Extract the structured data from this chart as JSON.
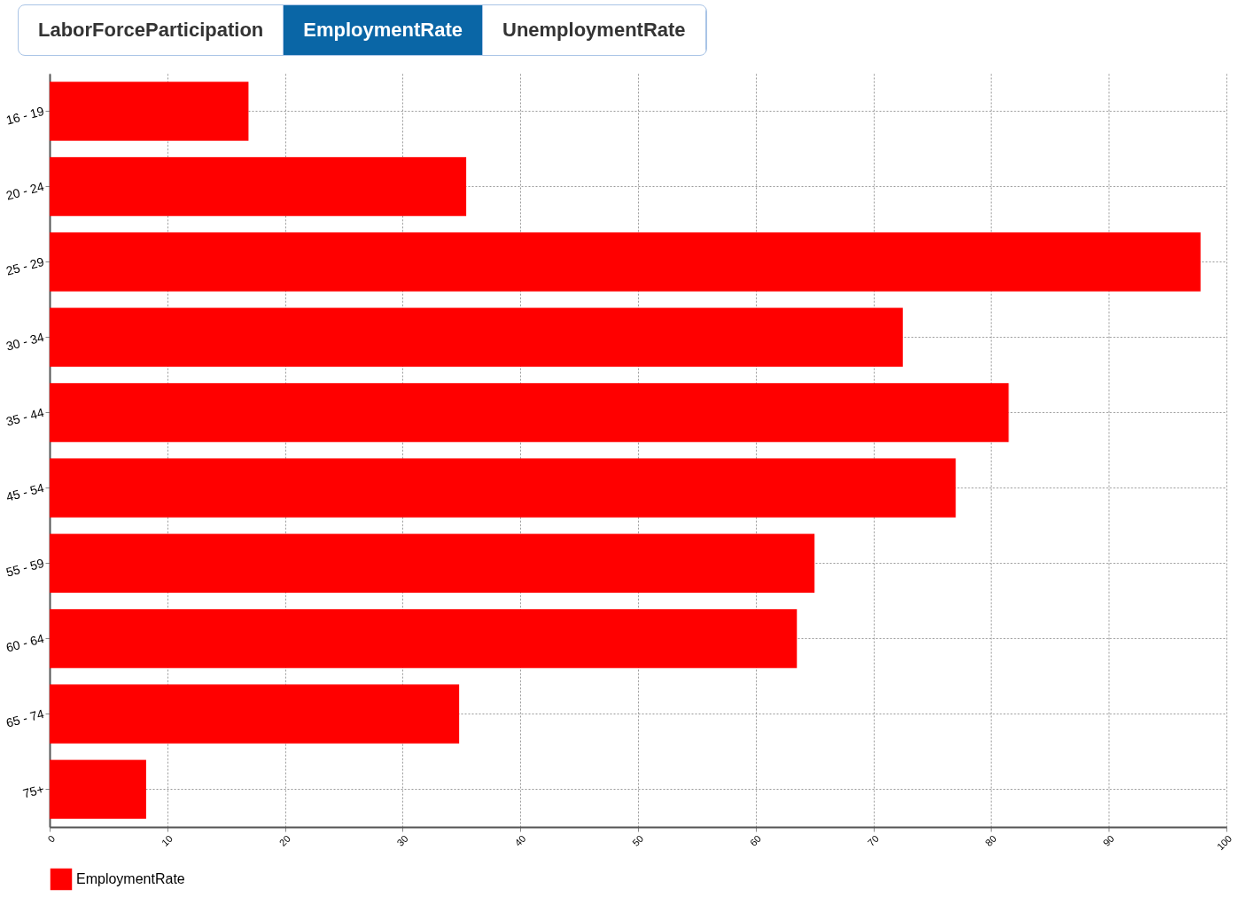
{
  "chart_data": {
    "type": "bar",
    "orientation": "horizontal",
    "annotations": [
      "LaborForceParticipation",
      "EmploymentRate",
      "UnemploymentRate"
    ],
    "categories": [
      "16 - 19",
      "20 - 24",
      "25 - 29",
      "30 - 34",
      "35 - 44",
      "45 - 54",
      "55 - 59",
      "60 - 64",
      "65 - 74",
      "75+"
    ],
    "series": [
      {
        "name": "EmploymentRate",
        "color": "#ff0000",
        "values": [
          16.9,
          35.4,
          97.8,
          72.5,
          81.5,
          77.0,
          65.0,
          63.5,
          34.8,
          8.2
        ]
      }
    ],
    "xlim": [
      0,
      100
    ],
    "xticks": [
      0,
      10,
      20,
      30,
      40,
      50,
      60,
      70,
      80,
      90,
      100
    ],
    "grid": true,
    "legend": "bottom"
  }
}
